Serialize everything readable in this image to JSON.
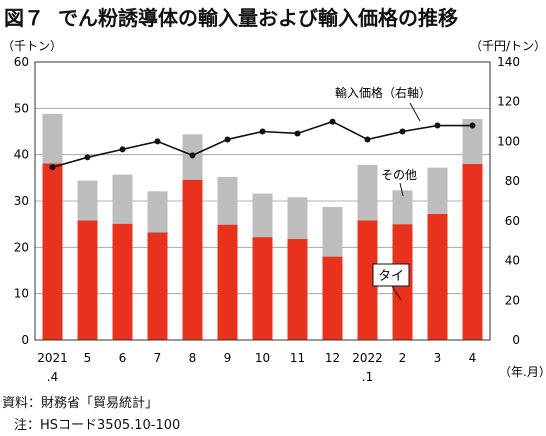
{
  "title": {
    "figure_label": "図７",
    "text": "でん粉誘導体の輸入量および輸入価格の推移"
  },
  "chart_data": {
    "type": "bar",
    "stacked": true,
    "categories": [
      "2021",
      "5",
      "6",
      "7",
      "8",
      "9",
      "10",
      "11",
      "12",
      "2022",
      "2",
      "3",
      "4"
    ],
    "category_sublabels": [
      ".4",
      "",
      "",
      "",
      "",
      "",
      "",
      "",
      "",
      ".1",
      "",
      "",
      ""
    ],
    "series": [
      {
        "name": "タイ",
        "color": "#e8321e",
        "values": [
          38.1,
          25.8,
          25.1,
          23.2,
          34.6,
          24.9,
          22.2,
          21.8,
          18.0,
          25.8,
          25.0,
          27.2,
          38.0
        ]
      },
      {
        "name": "その他",
        "color": "#bdbdbd",
        "values": [
          10.7,
          8.6,
          10.6,
          8.9,
          9.8,
          10.3,
          9.4,
          9.0,
          10.7,
          12.0,
          7.3,
          10.0,
          9.7
        ]
      }
    ],
    "line_series": {
      "name": "輸入価格（右軸）",
      "axis": "right",
      "values": [
        87,
        92,
        96,
        100,
        93,
        101,
        105,
        104,
        110,
        101,
        105,
        108,
        108
      ]
    },
    "ylabel_left": "（千トン）",
    "ylabel_right": "（千円/トン）",
    "xlabel": "（年.月）",
    "ylim_left": [
      0,
      60
    ],
    "ylim_right": [
      0,
      140
    ],
    "yticks_left": [
      "0",
      "10",
      "20",
      "30",
      "40",
      "50",
      "60"
    ],
    "yticks_right": [
      "0",
      "20",
      "40",
      "60",
      "80",
      "100",
      "120",
      "140"
    ],
    "grid": true
  },
  "annotations": {
    "price_label": "輸入価格（右軸）",
    "other_label": "その他",
    "thai_label": "タイ"
  },
  "notes": {
    "source": "資料：財務省「貿易統計」",
    "note": "注：HSコード3505.10-100"
  }
}
